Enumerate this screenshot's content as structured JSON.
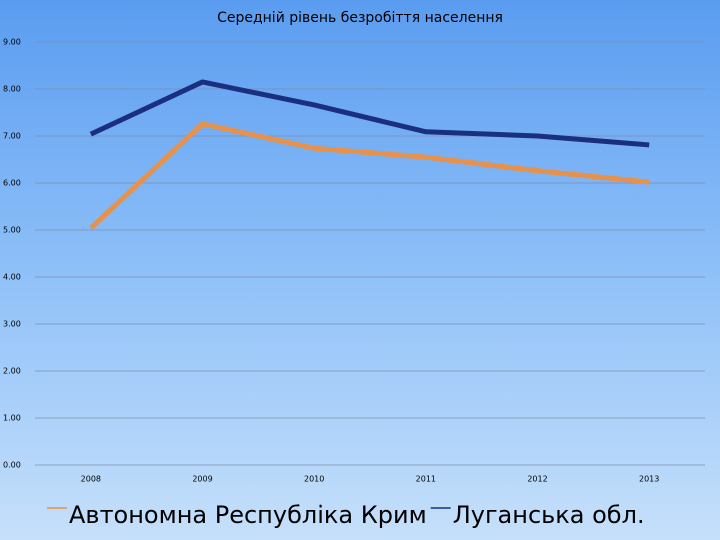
{
  "chart_data": {
    "type": "line",
    "title": "Середній рівень безробіття населення",
    "categories": [
      "2008",
      "2009",
      "2010",
      "2011",
      "2012",
      "2013"
    ],
    "series": [
      {
        "name": "Автономна Республіка Крим",
        "color": "#e8914a",
        "values": [
          5.04,
          7.26,
          6.74,
          6.55,
          6.26,
          6.02
        ]
      },
      {
        "name": "Луганська обл.",
        "color": "#1b2f80",
        "values": [
          7.04,
          8.15,
          7.66,
          7.09,
          7.0,
          6.81
        ]
      }
    ],
    "ylim": [
      0,
      9
    ],
    "yticks": [
      {
        "value": 0,
        "label": "0.00"
      },
      {
        "value": 1,
        "label": "1.00"
      },
      {
        "value": 2,
        "label": "2.00"
      },
      {
        "value": 3,
        "label": "3.00"
      },
      {
        "value": 4,
        "label": "4.00"
      },
      {
        "value": 5,
        "label": "5.00"
      },
      {
        "value": 6,
        "label": "6.00"
      },
      {
        "value": 7,
        "label": "7.00"
      },
      {
        "value": 8,
        "label": "8.00"
      },
      {
        "value": 9,
        "label": "9.00"
      }
    ],
    "grid": true
  }
}
